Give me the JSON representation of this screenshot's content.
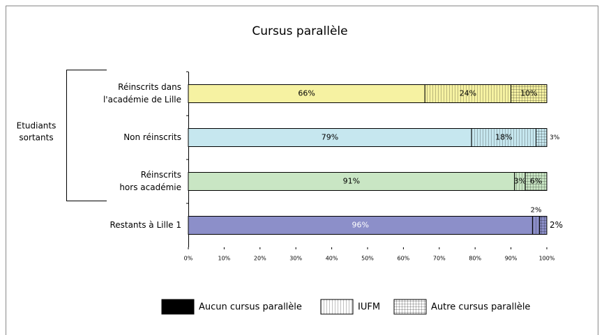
{
  "chart_data": {
    "type": "stacked_barh",
    "title": "Cursus parallèle",
    "group_label": [
      "Etudiants",
      "sortants"
    ],
    "categories": [
      [
        "Réinscrits dans",
        "l'académie de Lille"
      ],
      [
        "Non réinscrits"
      ],
      [
        "Réinscrits",
        "hors académie"
      ],
      [
        "Restants à Lille 1"
      ]
    ],
    "category_colors": [
      "#f6f2a2",
      "#c6e7ef",
      "#c9e6c4",
      "#8c8fc9"
    ],
    "series": [
      {
        "name": "Aucun cursus parallèle",
        "color": "#000000",
        "pattern": "solid",
        "values": [
          66,
          79,
          91,
          96
        ],
        "value_labels": [
          "66%",
          "79%",
          "91%",
          "96%"
        ]
      },
      {
        "name": "IUFM",
        "color": "#ffffff",
        "pattern": "vertical",
        "values": [
          24,
          18,
          3,
          2
        ],
        "value_labels": [
          "24%",
          "18%",
          "3%",
          "2%"
        ]
      },
      {
        "name": "Autre cursus parallèle",
        "color": "#ffffff",
        "pattern": "grid",
        "values": [
          10,
          3,
          6,
          2
        ],
        "value_labels": [
          "10%",
          "3%",
          "6%",
          "2%"
        ]
      }
    ],
    "xlim": [
      0,
      100
    ],
    "xticks": [
      {
        "value": 0,
        "label": "0%"
      },
      {
        "value": 10,
        "label": "10%"
      },
      {
        "value": 20,
        "label": "20%"
      },
      {
        "value": 30,
        "label": "30%"
      },
      {
        "value": 40,
        "label": "40%"
      },
      {
        "value": 50,
        "label": "50%"
      },
      {
        "value": 60,
        "label": "60%"
      },
      {
        "value": 70,
        "label": "70%"
      },
      {
        "value": 80,
        "label": "80%"
      },
      {
        "value": 90,
        "label": "90%"
      },
      {
        "value": 100,
        "label": "100%"
      }
    ]
  }
}
